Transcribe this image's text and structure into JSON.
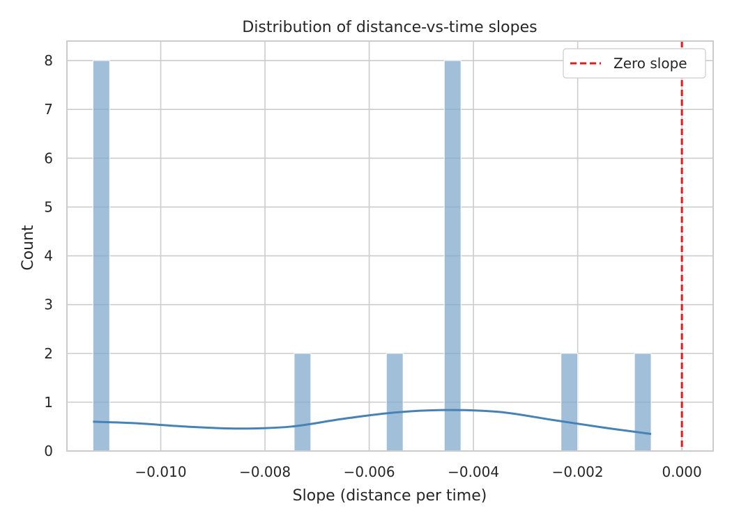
{
  "chart_data": {
    "type": "bar",
    "title": "Distribution of distance-vs-time slopes",
    "xlabel": "Slope (distance per time)",
    "ylabel": "Count",
    "xlim": [
      -0.0118,
      0.0006
    ],
    "ylim": [
      0,
      8.4
    ],
    "xticks": [
      -0.01,
      -0.008,
      -0.006,
      -0.004,
      -0.002,
      0.0
    ],
    "xtick_labels": [
      "−0.010",
      "−0.008",
      "−0.006",
      "−0.004",
      "−0.002",
      "0.000"
    ],
    "yticks": [
      0,
      1,
      2,
      3,
      4,
      5,
      6,
      7,
      8
    ],
    "ytick_labels": [
      "0",
      "1",
      "2",
      "3",
      "4",
      "5",
      "6",
      "7",
      "8"
    ],
    "grid": true,
    "bin_width": 0.00032,
    "bins": [
      {
        "x0": -0.0113,
        "x1": -0.01098,
        "count": 8
      },
      {
        "x0": -0.00744,
        "x1": -0.00712,
        "count": 2
      },
      {
        "x0": -0.00567,
        "x1": -0.00535,
        "count": 2
      },
      {
        "x0": -0.00456,
        "x1": -0.00424,
        "count": 8
      },
      {
        "x0": -0.00232,
        "x1": -0.002,
        "count": 2
      },
      {
        "x0": -0.00091,
        "x1": -0.00059,
        "count": 2
      }
    ],
    "kde": {
      "x": [
        -0.0113,
        -0.0105,
        -0.0095,
        -0.0085,
        -0.0075,
        -0.0065,
        -0.0055,
        -0.0045,
        -0.0035,
        -0.0025,
        -0.0015,
        -0.00059
      ],
      "y": [
        0.6,
        0.57,
        0.5,
        0.46,
        0.5,
        0.66,
        0.79,
        0.84,
        0.8,
        0.64,
        0.48,
        0.35
      ]
    },
    "reference_line": {
      "x": 0.0,
      "label": "Zero slope",
      "color": "#e41a1c",
      "style": "dashed"
    },
    "legend": {
      "placement": "top-right",
      "entries": [
        "Zero slope"
      ]
    },
    "colors": {
      "bar": "#7ea6cc",
      "kde": "#4682b4",
      "grid": "#cccccc",
      "spine": "#cccccc"
    }
  }
}
